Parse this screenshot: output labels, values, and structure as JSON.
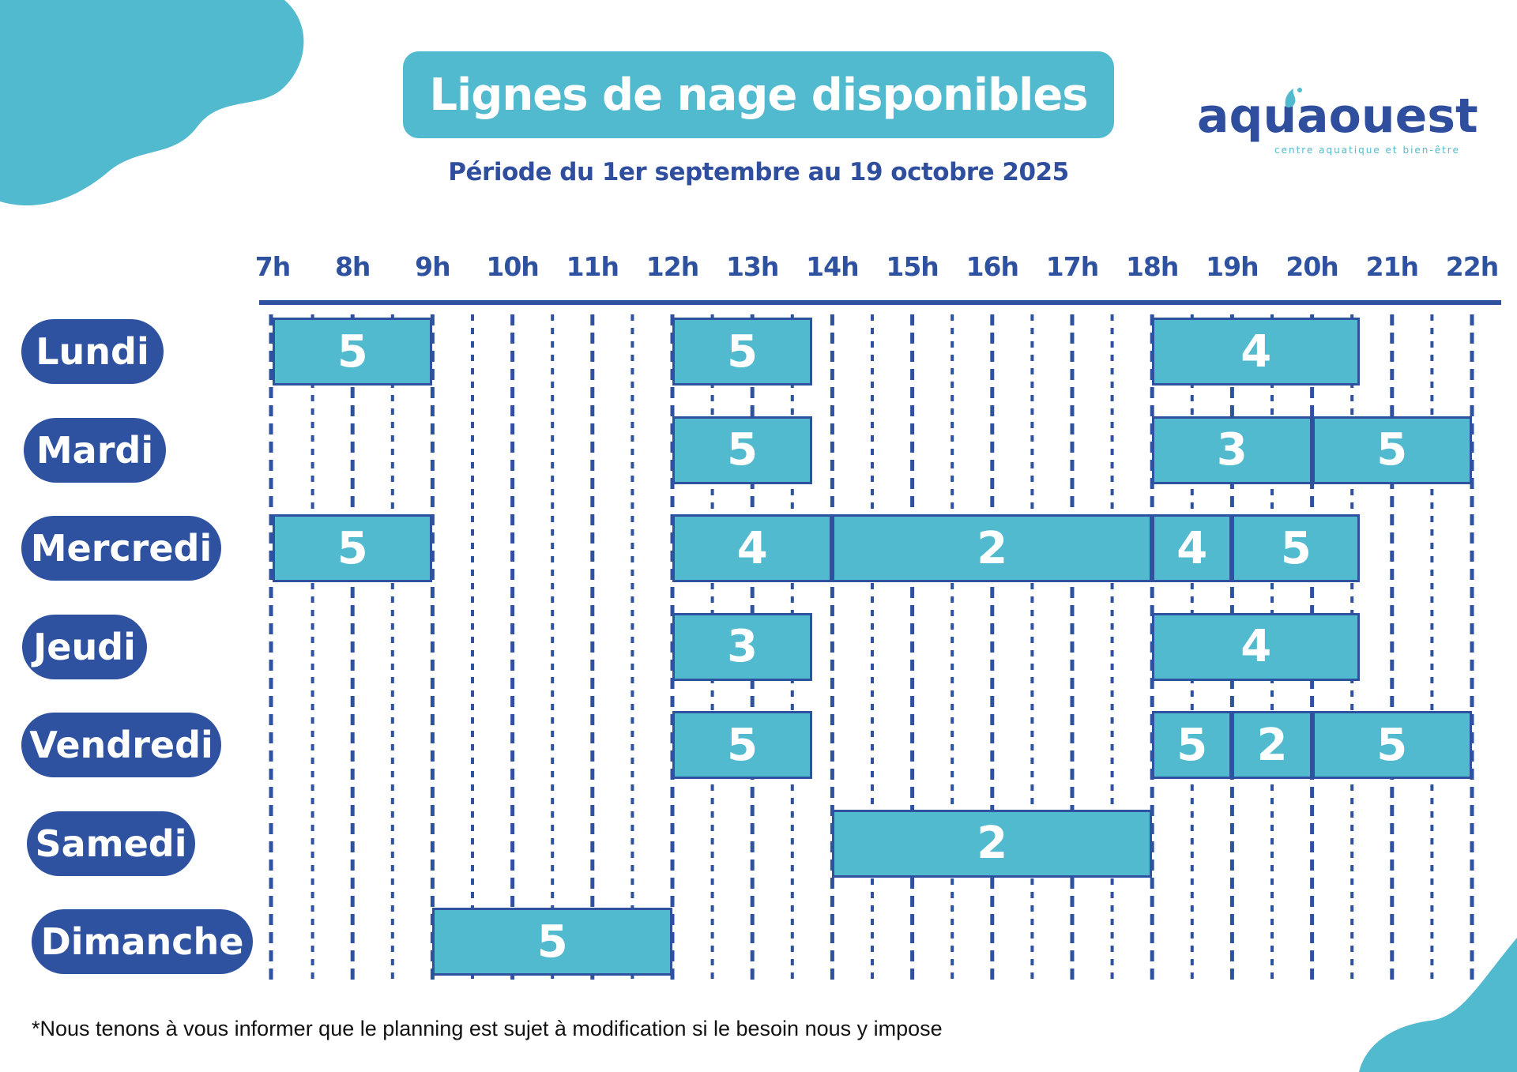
{
  "title": "Lignes de nage disponibles",
  "subtitle": "Période du 1er septembre au 19 octobre 2025",
  "logo": {
    "wordmark_part1": "aq",
    "wordmark_part2": "ua",
    "wordmark_part3": "ouest",
    "tagline": "centre aquatique et bien-être"
  },
  "hours": [
    "7h",
    "8h",
    "9h",
    "10h",
    "11h",
    "12h",
    "13h",
    "14h",
    "15h",
    "16h",
    "17h",
    "18h",
    "19h",
    "20h",
    "21h",
    "22h"
  ],
  "days": [
    {
      "label": "Lundi",
      "slots": [
        {
          "start": 7,
          "end": 9,
          "lanes": "5"
        },
        {
          "start": 12,
          "end": 13.75,
          "lanes": "5"
        },
        {
          "start": 18,
          "end": 20.6,
          "lanes": "4"
        }
      ]
    },
    {
      "label": "Mardi",
      "slots": [
        {
          "start": 12,
          "end": 13.75,
          "lanes": "5"
        },
        {
          "start": 18,
          "end": 20,
          "lanes": "3"
        },
        {
          "start": 20,
          "end": 22,
          "lanes": "5"
        }
      ]
    },
    {
      "label": "Mercredi",
      "slots": [
        {
          "start": 7,
          "end": 9,
          "lanes": "5"
        },
        {
          "start": 12,
          "end": 14,
          "lanes": "4"
        },
        {
          "start": 14,
          "end": 18,
          "lanes": "2"
        },
        {
          "start": 18,
          "end": 19,
          "lanes": "4"
        },
        {
          "start": 19,
          "end": 20.6,
          "lanes": "5"
        }
      ]
    },
    {
      "label": "Jeudi",
      "slots": [
        {
          "start": 12,
          "end": 13.75,
          "lanes": "3"
        },
        {
          "start": 18,
          "end": 20.6,
          "lanes": "4"
        }
      ]
    },
    {
      "label": "Vendredi",
      "slots": [
        {
          "start": 12,
          "end": 13.75,
          "lanes": "5"
        },
        {
          "start": 18,
          "end": 19,
          "lanes": "5"
        },
        {
          "start": 19,
          "end": 20,
          "lanes": "2"
        },
        {
          "start": 20,
          "end": 22,
          "lanes": "5"
        }
      ]
    },
    {
      "label": "Samedi",
      "slots": [
        {
          "start": 14,
          "end": 18,
          "lanes": "2"
        }
      ]
    },
    {
      "label": "Dimanche",
      "slots": [
        {
          "start": 9,
          "end": 12,
          "lanes": "5"
        }
      ]
    }
  ],
  "footnote": "*Nous tenons à vous informer que le planning est sujet à modification si le besoin nous y impose",
  "colors": {
    "navy": "#2f52a0",
    "aqua": "#52bace",
    "title_navy": "#2f4f9e"
  }
}
